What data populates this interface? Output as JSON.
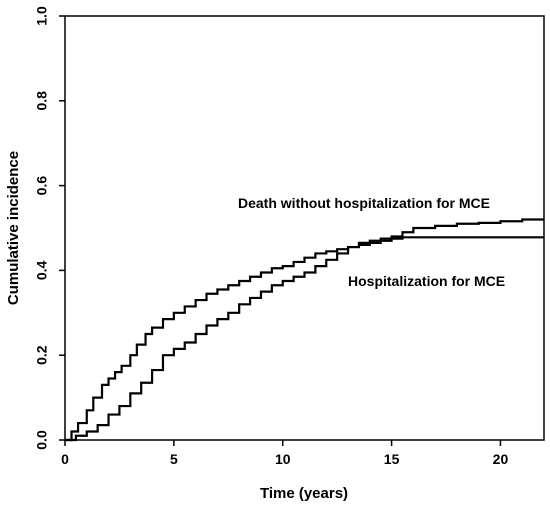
{
  "chart_data": {
    "type": "line",
    "title": "",
    "xlabel": "Time (years)",
    "ylabel": "Cumulative incidence",
    "xlim": [
      0,
      22
    ],
    "ylim": [
      0,
      1.0
    ],
    "x_ticks": [
      0,
      5,
      10,
      15,
      20
    ],
    "y_ticks": [
      0.0,
      0.2,
      0.4,
      0.6,
      0.8,
      1.0
    ],
    "x_tick_labels": [
      "0",
      "5",
      "10",
      "15",
      "20"
    ],
    "y_tick_labels": [
      "0.0",
      "0.2",
      "0.4",
      "0.6",
      "0.8",
      "1.0"
    ],
    "grid": false,
    "legend": "none",
    "step": true,
    "line_color": "#000000",
    "series": [
      {
        "name": "Death without hospitalization for MCE",
        "label": "Death without hospitalization for MCE",
        "points": [
          [
            0,
            0.0
          ],
          [
            0.3,
            0.02
          ],
          [
            0.6,
            0.04
          ],
          [
            1.0,
            0.07
          ],
          [
            1.3,
            0.1
          ],
          [
            1.7,
            0.13
          ],
          [
            2.0,
            0.145
          ],
          [
            2.3,
            0.16
          ],
          [
            2.6,
            0.175
          ],
          [
            3.0,
            0.2
          ],
          [
            3.3,
            0.225
          ],
          [
            3.7,
            0.25
          ],
          [
            4.0,
            0.265
          ],
          [
            4.5,
            0.285
          ],
          [
            5.0,
            0.3
          ],
          [
            5.5,
            0.315
          ],
          [
            6.0,
            0.33
          ],
          [
            6.5,
            0.345
          ],
          [
            7.0,
            0.355
          ],
          [
            7.5,
            0.365
          ],
          [
            8.0,
            0.375
          ],
          [
            8.5,
            0.385
          ],
          [
            9.0,
            0.395
          ],
          [
            9.5,
            0.405
          ],
          [
            10.0,
            0.41
          ],
          [
            10.5,
            0.42
          ],
          [
            11.0,
            0.43
          ],
          [
            11.5,
            0.44
          ],
          [
            12.0,
            0.445
          ],
          [
            12.5,
            0.45
          ],
          [
            13.0,
            0.455
          ],
          [
            13.5,
            0.46
          ],
          [
            14.0,
            0.465
          ],
          [
            14.5,
            0.47
          ],
          [
            15.0,
            0.475
          ],
          [
            15.5,
            0.478
          ],
          [
            16.0,
            0.478
          ],
          [
            18.0,
            0.478
          ],
          [
            20.0,
            0.478
          ],
          [
            22.0,
            0.478
          ]
        ]
      },
      {
        "name": "Hospitalization for MCE",
        "label": "Hospitalization for MCE",
        "points": [
          [
            0,
            0.0
          ],
          [
            0.5,
            0.01
          ],
          [
            1.0,
            0.02
          ],
          [
            1.5,
            0.035
          ],
          [
            2.0,
            0.06
          ],
          [
            2.5,
            0.08
          ],
          [
            3.0,
            0.11
          ],
          [
            3.5,
            0.135
          ],
          [
            4.0,
            0.165
          ],
          [
            4.5,
            0.2
          ],
          [
            5.0,
            0.215
          ],
          [
            5.5,
            0.23
          ],
          [
            6.0,
            0.25
          ],
          [
            6.5,
            0.27
          ],
          [
            7.0,
            0.285
          ],
          [
            7.5,
            0.3
          ],
          [
            8.0,
            0.32
          ],
          [
            8.5,
            0.335
          ],
          [
            9.0,
            0.35
          ],
          [
            9.5,
            0.365
          ],
          [
            10.0,
            0.375
          ],
          [
            10.5,
            0.385
          ],
          [
            11.0,
            0.395
          ],
          [
            11.5,
            0.41
          ],
          [
            12.0,
            0.425
          ],
          [
            12.5,
            0.44
          ],
          [
            13.0,
            0.455
          ],
          [
            13.5,
            0.465
          ],
          [
            14.0,
            0.47
          ],
          [
            14.5,
            0.475
          ],
          [
            15.0,
            0.48
          ],
          [
            15.5,
            0.49
          ],
          [
            16.0,
            0.5
          ],
          [
            17.0,
            0.505
          ],
          [
            18.0,
            0.51
          ],
          [
            19.0,
            0.512
          ],
          [
            20.0,
            0.516
          ],
          [
            21.0,
            0.52
          ],
          [
            22.0,
            0.52
          ]
        ]
      }
    ]
  }
}
